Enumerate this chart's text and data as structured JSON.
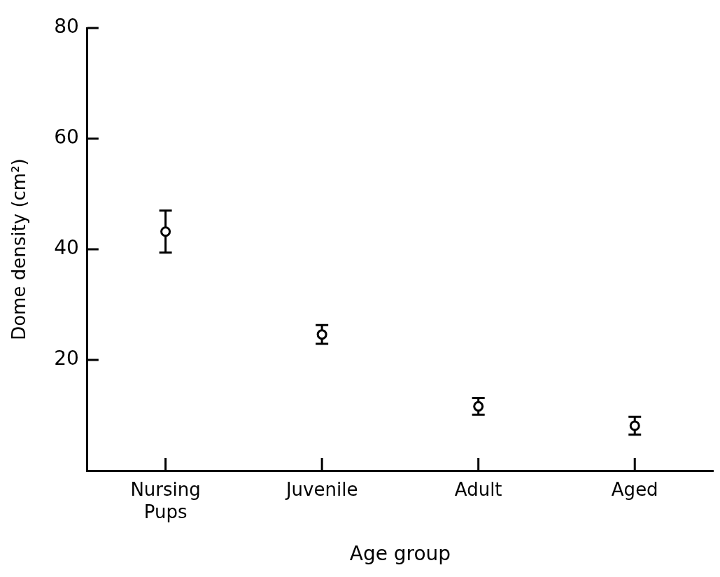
{
  "chart_data": {
    "type": "scatter",
    "xlabel": "Age group",
    "ylabel": "Dome density (cm²)",
    "categories": [
      "Nursing Pups",
      "Juvenile",
      "Adult",
      "Aged"
    ],
    "values": [
      43.2,
      24.6,
      11.6,
      8.1
    ],
    "errors": [
      3.8,
      1.7,
      1.5,
      1.6
    ],
    "color": "#000000",
    "marker": "circle",
    "ylim": [
      0,
      80
    ],
    "yticks": [
      20,
      40,
      60,
      80
    ],
    "grid": false,
    "legend": false
  }
}
